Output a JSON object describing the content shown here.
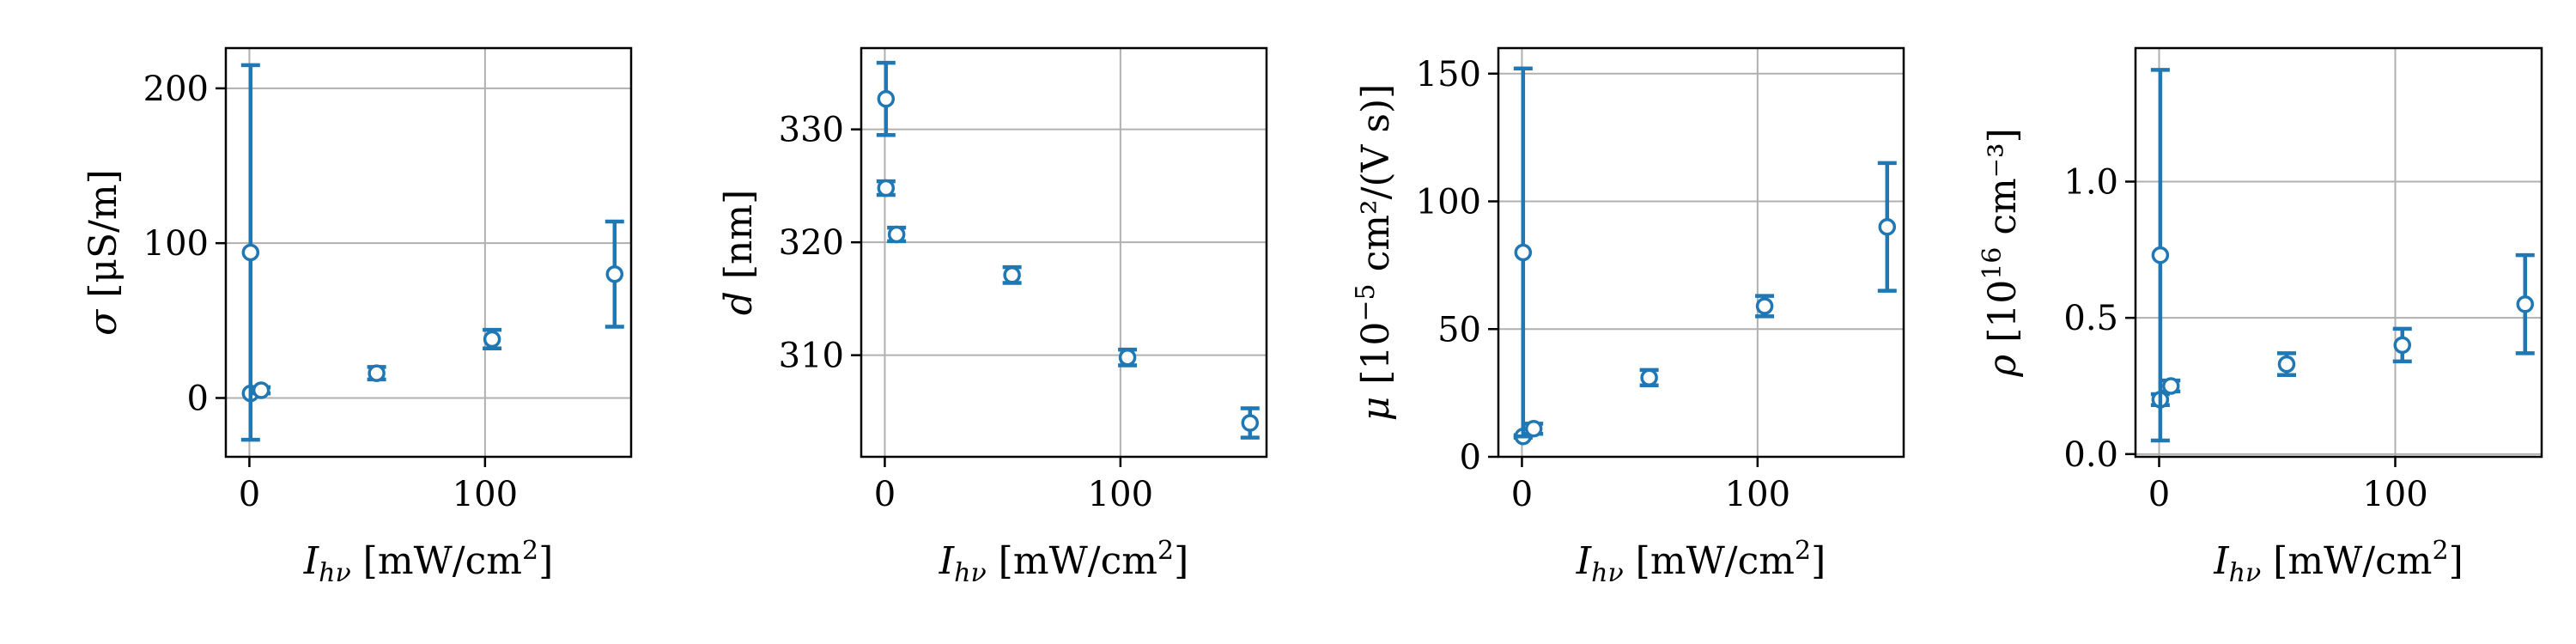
{
  "colors": {
    "series": "#1f77b4",
    "marker_face": "#ffffff",
    "grid": "#b0b0b0"
  },
  "chart_data": [
    {
      "type": "scatter",
      "xlabel": {
        "sym": "I",
        "sub": "hν",
        "unit": " [mW/cm",
        "sup": "2",
        "end": "]"
      },
      "ylabel": {
        "pre": "σ",
        "unit": " [μS/m]",
        "sup": "",
        "end": ""
      },
      "xlim": [
        -10,
        162
      ],
      "ylim": [
        -38,
        226
      ],
      "xticks": [
        0,
        100
      ],
      "xtick_labels": [
        "0",
        "100"
      ],
      "yticks": [
        0,
        100,
        200
      ],
      "ytick_labels": [
        "0",
        "100",
        "200"
      ],
      "grid": true,
      "points": [
        {
          "x": 0.5,
          "y": 3,
          "err": 0
        },
        {
          "x": 0.5,
          "y": 94,
          "err": 121
        },
        {
          "x": 5,
          "y": 5,
          "err": 2
        },
        {
          "x": 54,
          "y": 16,
          "err": 4
        },
        {
          "x": 103,
          "y": 38,
          "err": 6
        },
        {
          "x": 155,
          "y": 80,
          "err": 34
        }
      ]
    },
    {
      "type": "scatter",
      "xlabel": {
        "sym": "I",
        "sub": "hν",
        "unit": " [mW/cm",
        "sup": "2",
        "end": "]"
      },
      "ylabel": {
        "pre": "d",
        "unit": " [nm]",
        "sup": "",
        "end": ""
      },
      "xlim": [
        -10,
        162
      ],
      "ylim": [
        301,
        337.2
      ],
      "xticks": [
        0,
        100
      ],
      "xtick_labels": [
        "0",
        "100"
      ],
      "yticks": [
        310,
        320,
        330
      ],
      "ytick_labels": [
        "310",
        "320",
        "330"
      ],
      "grid": true,
      "points": [
        {
          "x": 0.5,
          "y": 332.7,
          "err": 3.2
        },
        {
          "x": 0.5,
          "y": 324.8,
          "err": 0.6
        },
        {
          "x": 5,
          "y": 320.7,
          "err": 0.6
        },
        {
          "x": 54,
          "y": 317.1,
          "err": 0.7
        },
        {
          "x": 103,
          "y": 309.8,
          "err": 0.7
        },
        {
          "x": 155,
          "y": 304,
          "err": 1.3
        }
      ]
    },
    {
      "type": "scatter",
      "xlabel": {
        "sym": "I",
        "sub": "hν",
        "unit": " [mW/cm",
        "sup": "2",
        "end": "]"
      },
      "ylabel": {
        "pre": "μ",
        "unit": " [10",
        "sup": "−5",
        "end": " cm²/(V s)]"
      },
      "xlim": [
        -10,
        162
      ],
      "ylim": [
        0,
        160
      ],
      "xticks": [
        0,
        100
      ],
      "xtick_labels": [
        "0",
        "100"
      ],
      "yticks": [
        0,
        50,
        100,
        150
      ],
      "ytick_labels": [
        "0",
        "50",
        "100",
        "150"
      ],
      "grid": true,
      "points": [
        {
          "x": 0.5,
          "y": 8,
          "err": 0.5
        },
        {
          "x": 0.5,
          "y": 80,
          "err": 72
        },
        {
          "x": 5,
          "y": 11,
          "err": 2
        },
        {
          "x": 54,
          "y": 31,
          "err": 3
        },
        {
          "x": 103,
          "y": 59,
          "err": 4
        },
        {
          "x": 155,
          "y": 90,
          "err": 25
        }
      ]
    },
    {
      "type": "scatter",
      "xlabel": {
        "sym": "I",
        "sub": "hν",
        "unit": " [mW/cm",
        "sup": "2",
        "end": "]"
      },
      "ylabel": {
        "pre": "ρ",
        "unit": " [10",
        "sup": "16",
        "end": " cm⁻³]"
      },
      "xlim": [
        -10,
        162
      ],
      "ylim": [
        -0.01,
        1.49
      ],
      "xticks": [
        0,
        100
      ],
      "xtick_labels": [
        "0",
        "100"
      ],
      "yticks": [
        0.0,
        0.5,
        1.0
      ],
      "ytick_labels": [
        "0.0",
        "0.5",
        "1.0"
      ],
      "grid": true,
      "points": [
        {
          "x": 0.5,
          "y": 0.2,
          "err": 0.02
        },
        {
          "x": 0.5,
          "y": 0.73,
          "err": 0.68
        },
        {
          "x": 5,
          "y": 0.25,
          "err": 0.02
        },
        {
          "x": 54,
          "y": 0.33,
          "err": 0.04
        },
        {
          "x": 103,
          "y": 0.4,
          "err": 0.06
        },
        {
          "x": 155,
          "y": 0.55,
          "err": 0.18
        }
      ]
    }
  ]
}
